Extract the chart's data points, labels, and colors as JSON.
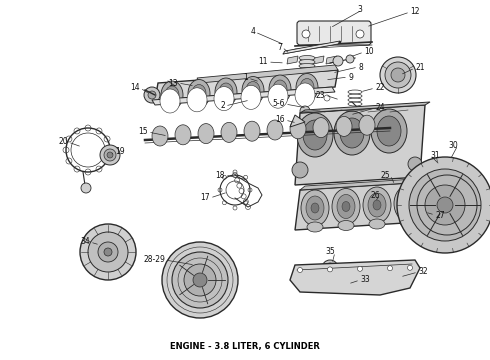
{
  "title": "ENGINE - 3.8 LITER, 6 CYLINDER",
  "title_fontsize": 6,
  "title_color": "#000000",
  "background_color": "#ffffff",
  "fig_width": 4.9,
  "fig_height": 3.6,
  "dpi": 100,
  "line_color": "#2a2a2a",
  "gray_fill": "#c8c8c8",
  "light_fill": "#e8e8e8"
}
